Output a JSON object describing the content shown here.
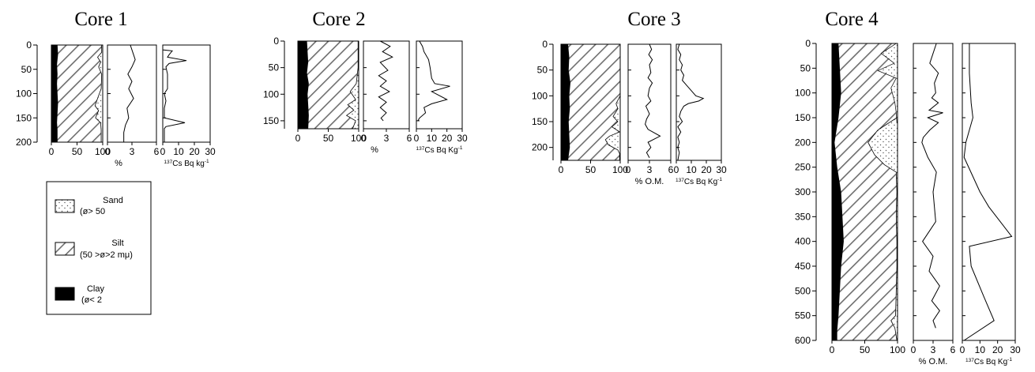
{
  "legend": {
    "items": [
      {
        "name": "Sand",
        "note": "(ø> 50"
      },
      {
        "name": "Silt",
        "note": "(50 >ø>2 mμ)"
      },
      {
        "name": "Clay",
        "note": "(ø< 2"
      }
    ]
  },
  "chart_data": [
    {
      "title": "Core 1",
      "type": "core-log",
      "depth_ticks": [
        "0",
        "50",
        "100",
        "150",
        "200"
      ],
      "ylim": [
        0,
        200
      ],
      "texture_xticks": [
        "0",
        "50",
        "100"
      ],
      "clay_pct": {
        "depth": [
          0,
          20,
          40,
          60,
          80,
          100,
          120,
          140,
          160,
          175,
          200
        ],
        "value": [
          12,
          13,
          11,
          12,
          11,
          12,
          13,
          12,
          11,
          12,
          12
        ]
      },
      "clay_plus_silt_pct": {
        "depth": [
          0,
          15,
          25,
          35,
          45,
          60,
          90,
          110,
          125,
          135,
          150,
          160,
          175,
          200
        ],
        "value": [
          98,
          98,
          90,
          96,
          92,
          98,
          97,
          90,
          85,
          92,
          86,
          96,
          97,
          97
        ]
      },
      "panel2": {
        "xlabel": "%",
        "xticks": [
          "0",
          "3",
          "6"
        ],
        "xlim": [
          0,
          6
        ],
        "depth": [
          0,
          20,
          30,
          45,
          60,
          75,
          90,
          110,
          130,
          150,
          165,
          180,
          200
        ],
        "value": [
          2.8,
          3.2,
          3.4,
          3.0,
          2.5,
          3.0,
          2.6,
          3.2,
          2.4,
          2.6,
          2.2,
          2.0,
          2.0
        ]
      },
      "panel3": {
        "xlabel_prefix": "137",
        "xlabel": "Cs Bq kg",
        "xlabel_exp": "-1",
        "xticks": [
          "0",
          "10",
          "20",
          "30"
        ],
        "xlim": [
          0,
          30
        ],
        "depth": [
          0,
          10,
          12,
          20,
          25,
          32,
          38,
          45,
          60,
          90,
          100,
          115,
          130,
          150,
          160,
          168,
          172,
          200
        ],
        "value": [
          0,
          0,
          6,
          4,
          3,
          15,
          4,
          2,
          3,
          3,
          1,
          2,
          1,
          1,
          14,
          2,
          1,
          1
        ]
      }
    },
    {
      "title": "Core 2",
      "type": "core-log",
      "depth_ticks": [
        "0",
        "50",
        "100",
        "150"
      ],
      "ylim": [
        0,
        165
      ],
      "texture_xticks": [
        "0",
        "50",
        "100"
      ],
      "clay_pct": {
        "depth": [
          0,
          20,
          40,
          60,
          80,
          100,
          120,
          140,
          165
        ],
        "value": [
          15,
          16,
          17,
          15,
          18,
          16,
          17,
          18,
          17
        ]
      },
      "clay_plus_silt_pct": {
        "depth": [
          0,
          50,
          80,
          95,
          110,
          120,
          130,
          140,
          150,
          165
        ],
        "value": [
          99,
          99,
          96,
          86,
          95,
          82,
          92,
          80,
          95,
          90
        ]
      },
      "panel2": {
        "xlabel": "%",
        "xticks": [
          "0",
          "3",
          "6"
        ],
        "xlim": [
          0,
          6
        ],
        "depth": [
          0,
          10,
          20,
          30,
          40,
          55,
          65,
          75,
          85,
          95,
          105,
          115,
          125,
          135,
          145,
          150
        ],
        "value": [
          2.2,
          3.5,
          2.5,
          3.8,
          2.2,
          3.2,
          2.0,
          3.0,
          2.2,
          3.4,
          2.0,
          3.0,
          2.2,
          3.0,
          2.3,
          2.6
        ]
      },
      "panel3": {
        "xlabel_prefix": "137",
        "xlabel": "Cs Bq Kg",
        "xlabel_exp": "-1",
        "xticks": [
          "0",
          "10",
          "20",
          "30"
        ],
        "xlim": [
          0,
          30
        ],
        "depth": [
          0,
          10,
          20,
          35,
          50,
          70,
          80,
          85,
          95,
          110,
          118,
          125,
          135,
          145,
          150
        ],
        "value": [
          2,
          4,
          5,
          8,
          9,
          10,
          12,
          22,
          10,
          20,
          10,
          5,
          6,
          2,
          1
        ]
      }
    },
    {
      "title": "Core 3",
      "type": "core-log",
      "depth_ticks": [
        "0",
        "50",
        "100",
        "150",
        "200"
      ],
      "ylim": [
        0,
        225
      ],
      "texture_xticks": [
        "0",
        "50",
        "100"
      ],
      "clay_pct": {
        "depth": [
          0,
          25,
          50,
          75,
          100,
          125,
          150,
          175,
          200,
          225
        ],
        "value": [
          12,
          14,
          13,
          16,
          14,
          15,
          13,
          14,
          15,
          12
        ]
      },
      "clay_plus_silt_pct": {
        "depth": [
          0,
          100,
          115,
          125,
          140,
          150,
          160,
          170,
          178,
          185,
          195,
          205,
          212,
          225
        ],
        "value": [
          100,
          100,
          93,
          96,
          88,
          96,
          86,
          99,
          82,
          75,
          80,
          96,
          99,
          99
        ]
      },
      "panel2": {
        "xlabel": "% O.M.",
        "xticks": [
          "0",
          "3",
          "6"
        ],
        "xlim": [
          0,
          6
        ],
        "depth": [
          0,
          10,
          20,
          30,
          40,
          55,
          65,
          75,
          85,
          100,
          110,
          120,
          135,
          145,
          155,
          165,
          178,
          190,
          200,
          210,
          220
        ],
        "value": [
          3.0,
          3.3,
          2.9,
          3.4,
          3.0,
          3.2,
          2.8,
          3.4,
          3.0,
          2.8,
          3.2,
          2.5,
          3.0,
          2.6,
          2.4,
          2.8,
          4.5,
          2.8,
          3.2,
          2.6,
          3.0
        ]
      },
      "panel3": {
        "xlabel_prefix": "137",
        "xlabel": "Cs Bq Kg",
        "xlabel_exp": "-1",
        "xticks": [
          "0",
          "10",
          "20",
          "30"
        ],
        "xlim": [
          0,
          30
        ],
        "depth": [
          0,
          10,
          20,
          30,
          40,
          50,
          60,
          70,
          80,
          90,
          100,
          105,
          110,
          115,
          120,
          130,
          140,
          150,
          160,
          170,
          180,
          190,
          200,
          210,
          225
        ],
        "value": [
          2,
          1,
          3,
          2,
          4,
          3,
          5,
          4,
          7,
          10,
          13,
          18,
          15,
          8,
          5,
          3,
          2,
          4,
          1,
          3,
          1,
          2,
          1,
          2,
          1
        ]
      }
    },
    {
      "title": "Core 4",
      "type": "core-log",
      "depth_ticks": [
        "0",
        "50",
        "100",
        "150",
        "200",
        "250",
        "300",
        "350",
        "400",
        "450",
        "500",
        "550",
        "600"
      ],
      "ylim": [
        0,
        600
      ],
      "texture_xticks": [
        "0",
        "50",
        "100"
      ],
      "clay_pct": {
        "depth": [
          0,
          50,
          100,
          150,
          200,
          250,
          300,
          350,
          400,
          450,
          500,
          550,
          580,
          600
        ],
        "value": [
          10,
          12,
          14,
          10,
          4,
          8,
          14,
          16,
          18,
          14,
          12,
          10,
          8,
          8
        ]
      },
      "sand_top": {
        "depth": [
          0,
          20,
          40,
          55,
          70,
          90,
          120,
          140,
          160
        ],
        "value": [
          98,
          75,
          95,
          70,
          98,
          90,
          96,
          98,
          99
        ]
      },
      "clay_plus_silt_pct": {
        "depth": [
          0,
          150,
          175,
          200,
          225,
          245,
          260,
          300,
          350,
          400,
          450,
          500,
          550,
          560,
          575,
          600
        ],
        "value": [
          99,
          99,
          70,
          55,
          65,
          80,
          98,
          99,
          98,
          99,
          99,
          98,
          97,
          90,
          96,
          99
        ]
      },
      "panel2": {
        "xlabel": "% O.M.",
        "xticks": [
          "0",
          "3",
          "6"
        ],
        "xlim": [
          0,
          6
        ],
        "depth": [
          0,
          20,
          40,
          60,
          80,
          100,
          110,
          120,
          135,
          140,
          150,
          160,
          175,
          190,
          200,
          230,
          260,
          300,
          330,
          360,
          400,
          430,
          460,
          490,
          520,
          540,
          560,
          575
        ],
        "value": [
          3.5,
          3.0,
          2.5,
          3.8,
          3.2,
          3.4,
          2.8,
          3.8,
          2.4,
          4.5,
          2.2,
          3.8,
          2.5,
          1.5,
          1.3,
          2.2,
          3.5,
          3.0,
          3.2,
          3.4,
          1.4,
          3.0,
          2.4,
          4.0,
          2.8,
          4.0,
          3.0,
          3.4
        ]
      },
      "panel3": {
        "xlabel_prefix": "137",
        "xlabel": "Cs Bq Kg",
        "xlabel_exp": "-1",
        "xticks": [
          "0",
          "10",
          "20",
          "30"
        ],
        "xlim": [
          0,
          30
        ],
        "depth": [
          0,
          60,
          120,
          150,
          200,
          230,
          300,
          330,
          390,
          410,
          450,
          510,
          560,
          600
        ],
        "value": [
          4,
          4,
          5,
          6,
          2,
          1,
          10,
          15,
          28,
          4,
          5,
          12,
          18,
          1
        ]
      }
    }
  ]
}
